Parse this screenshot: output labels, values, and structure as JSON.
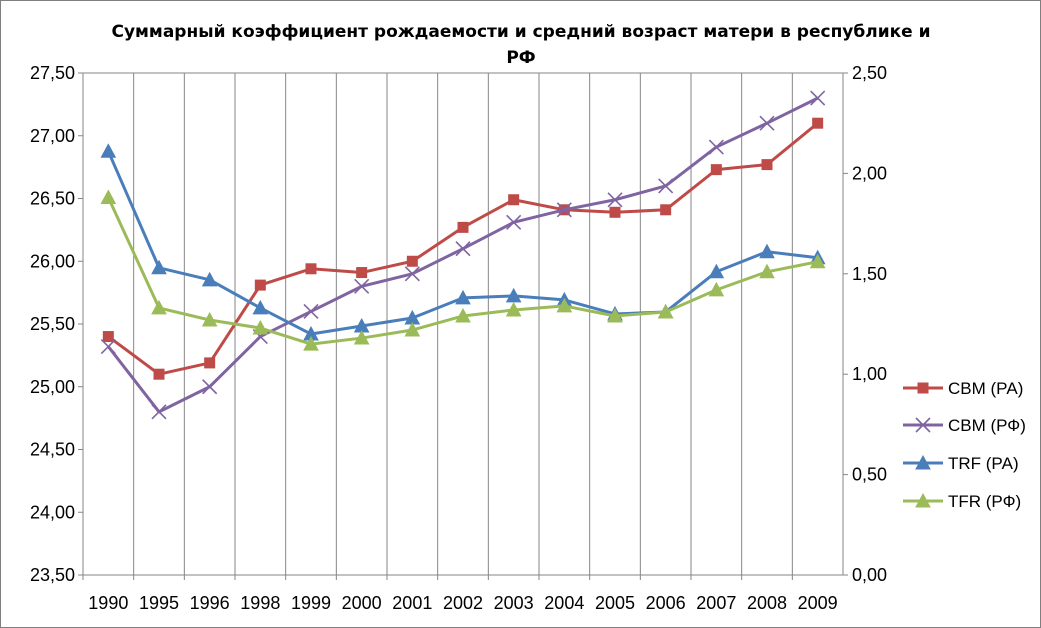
{
  "chart_data": {
    "type": "line",
    "title": "Суммарный коэффициент рождаемости и средний возраст матери в республике и РФ",
    "categories": [
      "1990",
      "1995",
      "1996",
      "1998",
      "1999",
      "2000",
      "2001",
      "2002",
      "2003",
      "2004",
      "2005",
      "2006",
      "2007",
      "2008",
      "2009"
    ],
    "y_left": {
      "min": 23.5,
      "max": 27.5,
      "step": 0.5,
      "tick_labels": [
        "23,50",
        "24,00",
        "24,50",
        "25,00",
        "25,50",
        "26,00",
        "26,50",
        "27,00",
        "27,50"
      ]
    },
    "y_right": {
      "min": 0,
      "max": 2.5,
      "step": 0.5,
      "tick_labels": [
        "0,00",
        "0,50",
        "1,00",
        "1,50",
        "2,00",
        "2,50"
      ]
    },
    "grid": {
      "vertical": true,
      "horizontal": false
    },
    "legend_position": "right",
    "series": [
      {
        "name": "СВМ (РА)",
        "axis": "left",
        "color": "#be4b48",
        "marker": "square",
        "values": [
          25.4,
          25.1,
          25.19,
          25.81,
          25.94,
          25.91,
          26.0,
          26.27,
          26.49,
          26.41,
          26.39,
          26.41,
          26.73,
          26.77,
          27.1
        ]
      },
      {
        "name": "СВМ (РФ)",
        "axis": "left",
        "color": "#8064a2",
        "marker": "x",
        "values": [
          25.32,
          24.8,
          25.0,
          25.4,
          25.6,
          25.8,
          25.9,
          26.1,
          26.31,
          26.41,
          26.49,
          26.6,
          26.91,
          27.1,
          27.3
        ]
      },
      {
        "name": "TRF (РА)",
        "axis": "right",
        "color": "#4a7ebb",
        "marker": "triangle",
        "values": [
          2.11,
          1.53,
          1.47,
          1.33,
          1.2,
          1.24,
          1.28,
          1.38,
          1.39,
          1.37,
          1.3,
          1.31,
          1.51,
          1.61,
          1.58
        ]
      },
      {
        "name": "TFR (РФ)",
        "axis": "right",
        "color": "#9bbb59",
        "marker": "triangle",
        "values": [
          1.88,
          1.33,
          1.27,
          1.23,
          1.15,
          1.18,
          1.22,
          1.29,
          1.32,
          1.34,
          1.29,
          1.31,
          1.42,
          1.51,
          1.56
        ]
      }
    ]
  }
}
